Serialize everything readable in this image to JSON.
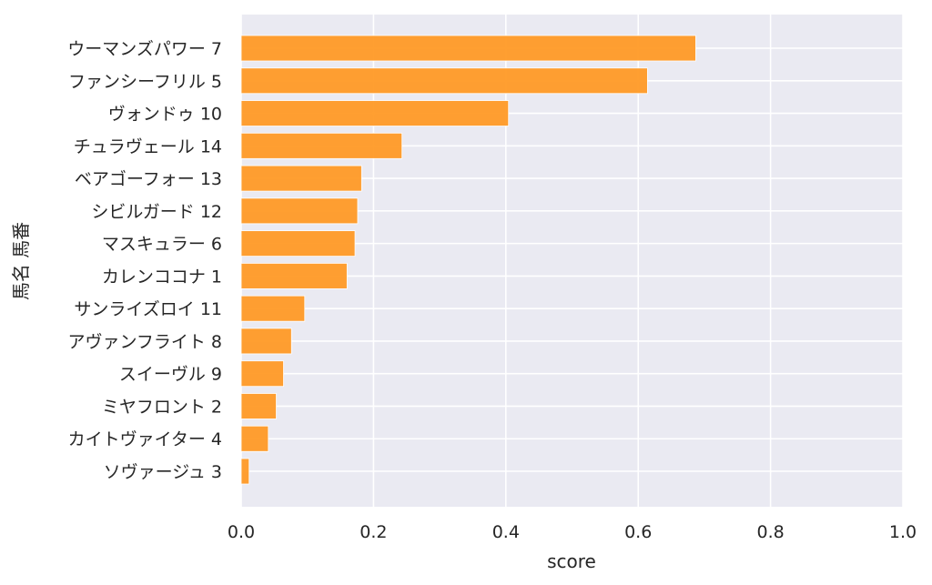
{
  "chart_data": {
    "type": "bar",
    "orientation": "horizontal",
    "xlabel": "score",
    "ylabel": "馬名 馬番",
    "xlim": [
      0.0,
      1.0
    ],
    "xticks": [
      "0.0",
      "0.2",
      "0.4",
      "0.6",
      "0.8",
      "1.0"
    ],
    "grid": true,
    "bar_color": "#ff9a26",
    "background_color": "#eaeaf2",
    "grid_color": "#ffffff",
    "categories": [
      "ウーマンズパワー 7",
      "ファンシーフリル 5",
      "ヴォンドゥ 10",
      "チュラヴェール 14",
      "ベアゴーフォー 13",
      "シビルガード 12",
      "マスキュラー 6",
      "カレンココナ 1",
      "サンライズロイ 11",
      "アヴァンフライト 8",
      "スイーヴル 9",
      "ミヤフロント 2",
      "カイトヴァイター 4",
      "ソヴァージュ 3"
    ],
    "values": [
      0.687,
      0.614,
      0.404,
      0.243,
      0.182,
      0.176,
      0.172,
      0.16,
      0.096,
      0.076,
      0.064,
      0.053,
      0.041,
      0.012
    ]
  }
}
